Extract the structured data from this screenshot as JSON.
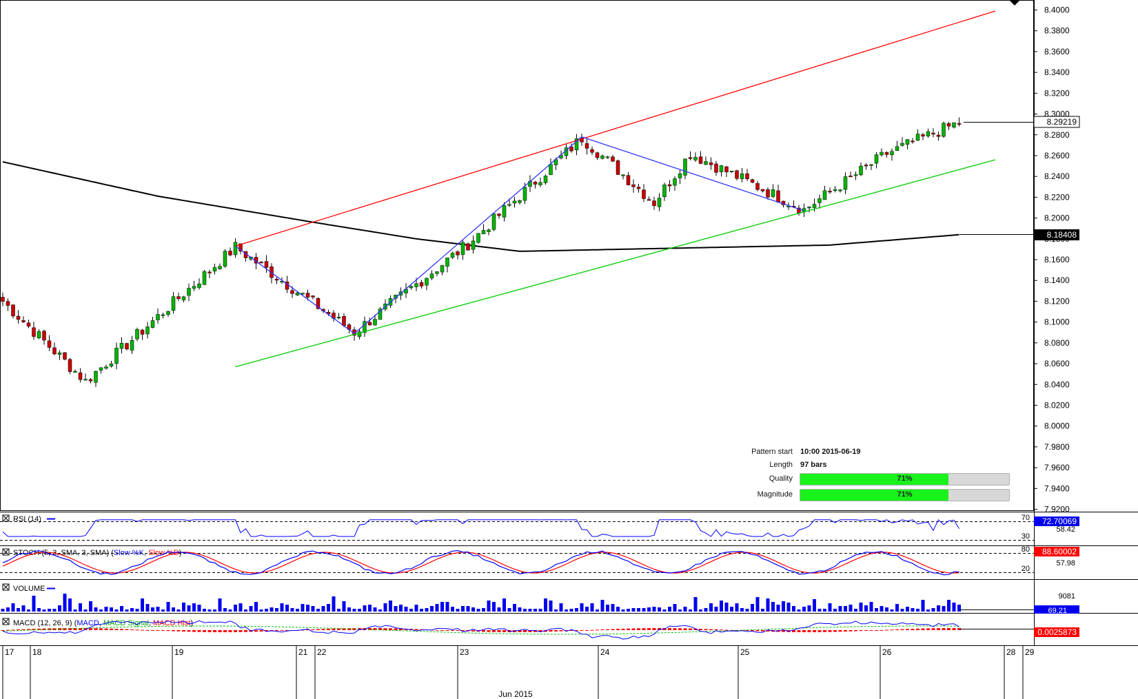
{
  "chart_data": {
    "type": "candlestick",
    "instrument_last_price": "8.29219",
    "moving_average_last": "8.18408",
    "y_ticks": [
      "8.4000",
      "8.3800",
      "8.3600",
      "8.3400",
      "8.3200",
      "8.3000",
      "8.2800",
      "8.2600",
      "8.2400",
      "8.2200",
      "8.2000",
      "8.1800",
      "8.1600",
      "8.1400",
      "8.1200",
      "8.1000",
      "8.0800",
      "8.0600",
      "8.0400",
      "8.0200",
      "8.0000",
      "7.9800",
      "7.9600",
      "7.9400",
      "7.9200"
    ],
    "ylim": [
      7.92,
      8.4
    ],
    "x_labels": [
      "17",
      "18",
      "19",
      "21",
      "22",
      "23",
      "24",
      "25",
      "26",
      "28",
      "29"
    ],
    "x_month_label": "Jun 2015",
    "key_points": [
      {
        "bar": 0,
        "close": 8.12
      },
      {
        "bar": 16,
        "close": 8.043
      },
      {
        "bar": 45,
        "close": 8.172
      },
      {
        "bar": 68,
        "close": 8.09
      },
      {
        "bar": 90,
        "close": 8.175
      },
      {
        "bar": 112,
        "close": 8.277
      },
      {
        "bar": 126,
        "close": 8.215
      },
      {
        "bar": 133,
        "close": 8.262
      },
      {
        "bar": 155,
        "close": 8.208
      },
      {
        "bar": 171,
        "close": 8.262
      },
      {
        "bar": 185,
        "close": 8.292
      }
    ],
    "moving_average": [
      {
        "bar": 0,
        "value": 8.254
      },
      {
        "bar": 30,
        "value": 8.221
      },
      {
        "bar": 60,
        "value": 8.196
      },
      {
        "bar": 80,
        "value": 8.18
      },
      {
        "bar": 100,
        "value": 8.168
      },
      {
        "bar": 130,
        "value": 8.171
      },
      {
        "bar": 160,
        "value": 8.174
      },
      {
        "bar": 185,
        "value": 8.184
      }
    ],
    "pattern_lines": {
      "resistance": {
        "color": "#ff0000",
        "from": {
          "bar": 45,
          "price": 8.173
        },
        "to": {
          "bar": 192,
          "price": 8.399
        }
      },
      "support": {
        "color": "#00cc00",
        "from": {
          "bar": 45,
          "price": 8.057
        },
        "to": {
          "bar": 192,
          "price": 8.256
        }
      },
      "zigzag": {
        "color": "#3333ff",
        "points": [
          {
            "bar": 45,
            "price": 8.173
          },
          {
            "bar": 68,
            "price": 8.089
          },
          {
            "bar": 112,
            "price": 8.278
          },
          {
            "bar": 155,
            "price": 8.207
          }
        ]
      }
    },
    "indicators": {
      "rsi": {
        "label": "RSI (14)",
        "value": "72.70069",
        "second": "58.42",
        "levels": [
          "70",
          "30"
        ]
      },
      "stoch": {
        "label": "STOCH (5, 3, SMA, 3, SMA)",
        "k_label": "Slow %K",
        "d_label": "Slow %D",
        "value": "88.60002",
        "second": "57.98",
        "levels": [
          "80",
          "20"
        ]
      },
      "volume": {
        "label": "VOLUME",
        "value": "69.21",
        "second": "9081"
      },
      "macd": {
        "label": "MACD (12, 26, 9)",
        "macd_label": "MACD",
        "signal_label": "MACD Signal",
        "hist_label": "MACD Hist",
        "value": "0.0025873"
      }
    },
    "colors": {
      "bull": "#00b400",
      "bear": "#c80000",
      "ma": "#000000",
      "rsi": "#0000ff",
      "stoch_k": "#0000ff",
      "stoch_d": "#ff0000",
      "volume": "#0000ee"
    }
  },
  "pattern_info": {
    "start_label": "Pattern start",
    "start_value": "10:00 2015-06-19",
    "length_label": "Length",
    "length_value": "97 bars",
    "quality_label": "Quality",
    "quality_value": "71%",
    "quality_fraction": 0.71,
    "magnitude_label": "Magnitude",
    "magnitude_value": "71%",
    "magnitude_fraction": 0.71
  }
}
